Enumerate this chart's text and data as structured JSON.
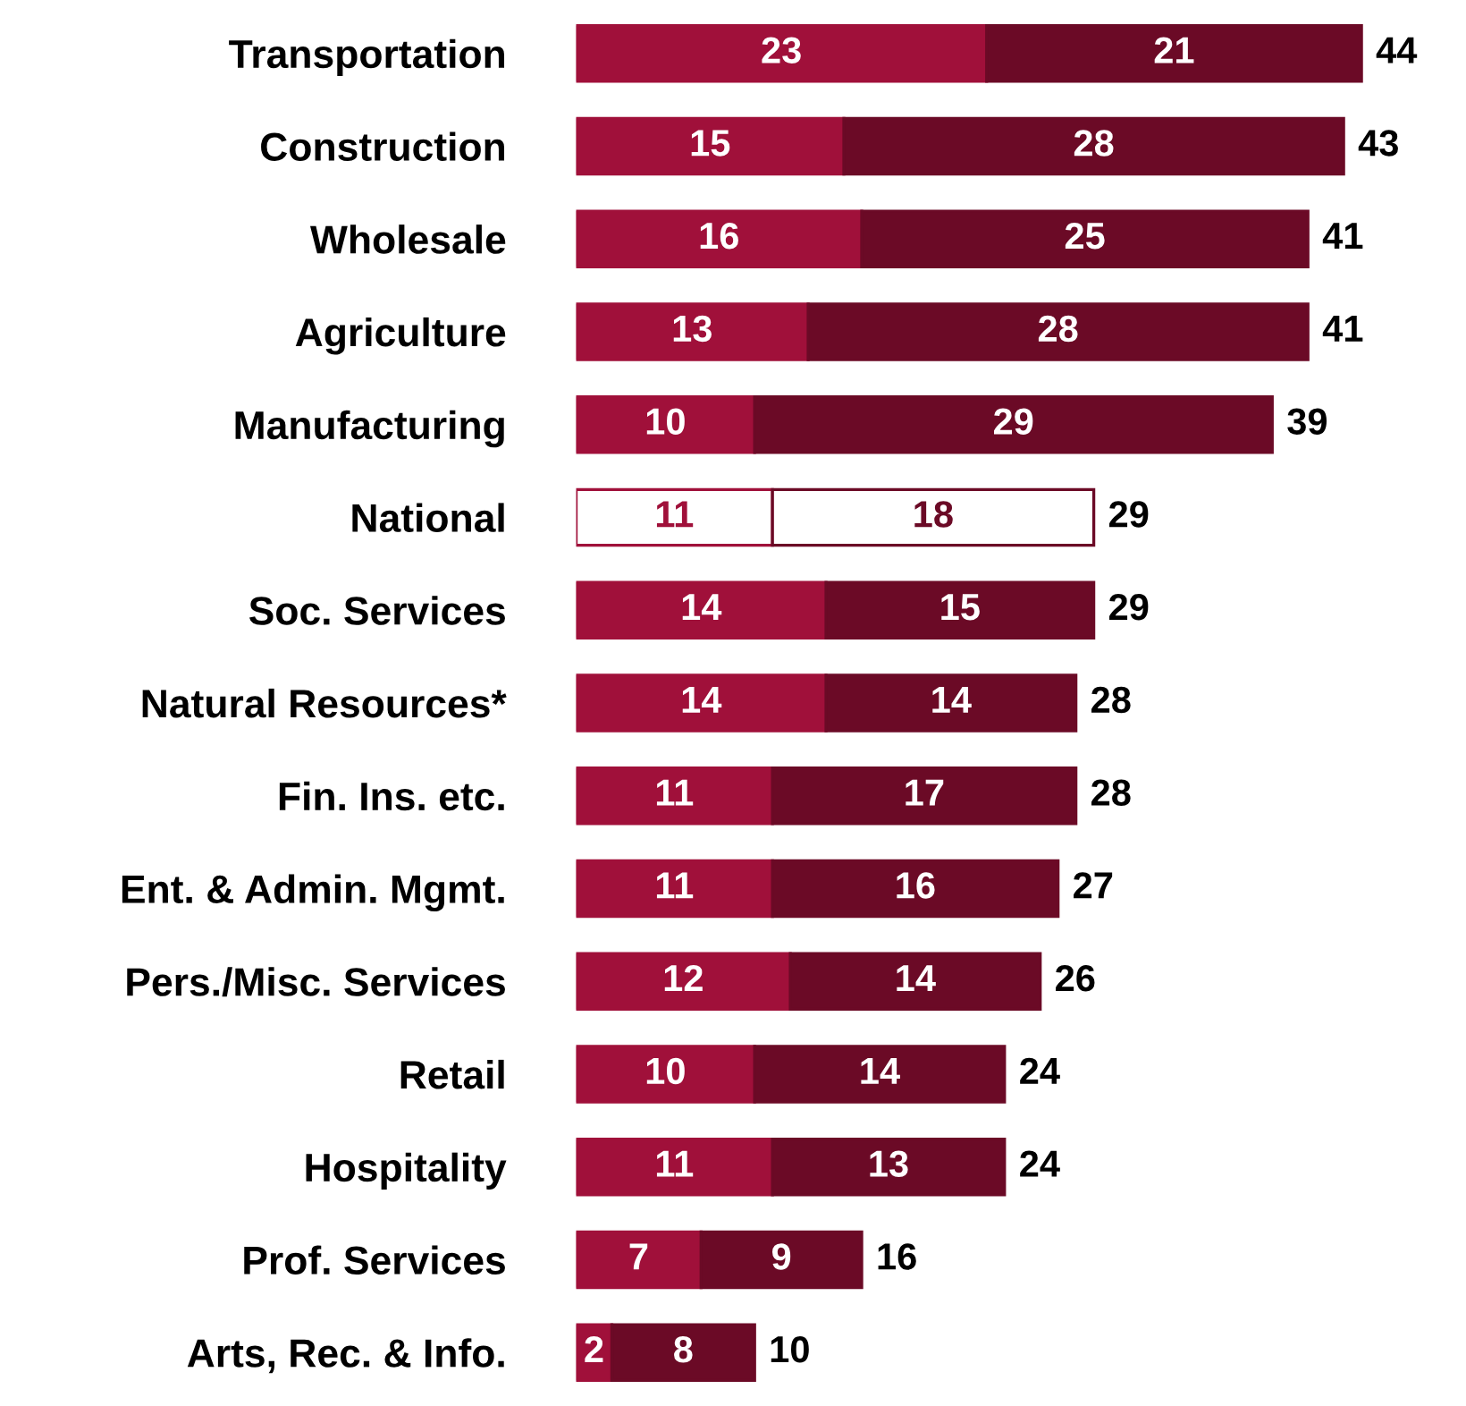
{
  "chart_data": {
    "type": "bar",
    "orientation": "horizontal",
    "stacked": true,
    "data_labels": true,
    "tick_labels": "y",
    "categories": [
      "Transportation",
      "Construction",
      "Wholesale",
      "Agriculture",
      "Manufacturing",
      "National",
      "Soc. Services",
      "Natural Resources*",
      "Fin. Ins. etc.",
      "Ent. & Admin. Mgmt.",
      "Pers./Misc. Services",
      "Retail",
      "Hospitality",
      "Prof. Services",
      "Arts, Rec. & Info."
    ],
    "series": [
      {
        "color": "#a0103a",
        "colors": [
          "#a0103a",
          "#a0103a",
          "#a0103a",
          "#a0103a",
          "#a0103a",
          "#ffffff",
          "#a0103a",
          "#a0103a",
          "#a0103a",
          "#a0103a",
          "#a0103a",
          "#a0103a",
          "#a0103a",
          "#a0103a",
          "#a0103a"
        ],
        "values": [
          23,
          15,
          16,
          13,
          10,
          11,
          14,
          14,
          11,
          11,
          12,
          10,
          11,
          7,
          2
        ]
      },
      {
        "color": "#6b0a26",
        "colors": [
          "#6b0a26",
          "#6b0a26",
          "#6b0a26",
          "#6b0a26",
          "#6b0a26",
          "#ffffff",
          "#6b0a26",
          "#6b0a26",
          "#6b0a26",
          "#6b0a26",
          "#6b0a26",
          "#6b0a26",
          "#6b0a26",
          "#6b0a26",
          "#6b0a26"
        ],
        "values": [
          21,
          28,
          25,
          28,
          29,
          18,
          15,
          14,
          17,
          16,
          14,
          14,
          13,
          9,
          8
        ]
      }
    ],
    "totals": [
      "44",
      "43",
      "41",
      "41",
      "39",
      "29",
      "29",
      "28",
      "28",
      "27",
      "26",
      "24",
      "24",
      "16",
      "10"
    ]
  }
}
